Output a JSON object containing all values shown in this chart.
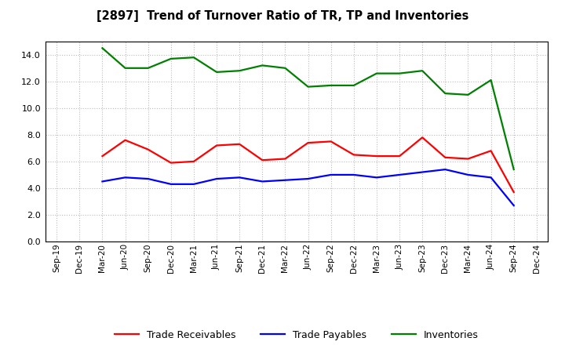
{
  "title": "[2897]  Trend of Turnover Ratio of TR, TP and Inventories",
  "labels": [
    "Sep-19",
    "Dec-19",
    "Mar-20",
    "Jun-20",
    "Sep-20",
    "Dec-20",
    "Mar-21",
    "Jun-21",
    "Sep-21",
    "Dec-21",
    "Mar-22",
    "Jun-22",
    "Sep-22",
    "Dec-22",
    "Mar-23",
    "Jun-23",
    "Sep-23",
    "Dec-23",
    "Mar-24",
    "Jun-24",
    "Sep-24",
    "Dec-24"
  ],
  "trade_receivables": [
    null,
    null,
    6.4,
    7.6,
    6.9,
    5.9,
    6.0,
    7.2,
    7.3,
    6.1,
    6.2,
    7.4,
    7.5,
    6.5,
    6.4,
    6.4,
    7.8,
    6.3,
    6.2,
    6.8,
    3.7,
    null
  ],
  "trade_payables": [
    null,
    null,
    4.5,
    4.8,
    4.7,
    4.3,
    4.3,
    4.7,
    4.8,
    4.5,
    4.6,
    4.7,
    5.0,
    5.0,
    4.8,
    5.0,
    5.2,
    5.4,
    5.0,
    4.8,
    2.7,
    null
  ],
  "inventories": [
    null,
    null,
    14.5,
    13.0,
    13.0,
    13.7,
    13.8,
    12.7,
    12.8,
    13.2,
    13.0,
    11.6,
    11.7,
    11.7,
    12.6,
    12.6,
    12.8,
    11.1,
    11.0,
    12.1,
    5.4,
    null
  ],
  "tr_color": "#ff0000",
  "tp_color": "#0000ff",
  "inv_color": "#008000",
  "ylim": [
    0.0,
    15.0
  ],
  "yticks": [
    0.0,
    2.0,
    4.0,
    6.0,
    8.0,
    10.0,
    12.0,
    14.0
  ],
  "background_color": "#ffffff",
  "grid_color": "#bbbbbb",
  "line_width": 1.6
}
